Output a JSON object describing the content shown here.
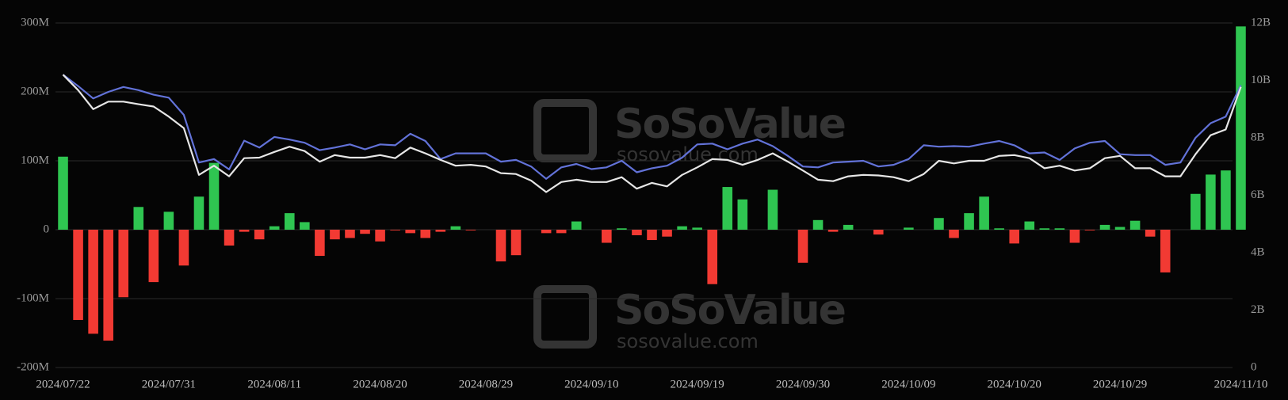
{
  "chart_data": {
    "type": "bar",
    "watermark": {
      "brand": "SoSoValue",
      "site": "sosovalue.com"
    },
    "categories": [
      "2024/07/22",
      null,
      null,
      null,
      null,
      null,
      null,
      "2024/07/31",
      null,
      null,
      null,
      null,
      null,
      null,
      "2024/08/11",
      null,
      null,
      null,
      null,
      null,
      null,
      "2024/08/20",
      null,
      null,
      null,
      null,
      null,
      null,
      "2024/08/29",
      null,
      null,
      null,
      null,
      null,
      null,
      "2024/09/10",
      null,
      null,
      null,
      null,
      null,
      null,
      "2024/09/19",
      null,
      null,
      null,
      null,
      null,
      null,
      "2024/09/30",
      null,
      null,
      null,
      null,
      null,
      null,
      "2024/10/09",
      null,
      null,
      null,
      null,
      null,
      null,
      "2024/10/20",
      null,
      null,
      null,
      null,
      null,
      null,
      "2024/10/29",
      null,
      null,
      null,
      null,
      null,
      null,
      null,
      "2024/11/10"
    ],
    "series": [
      {
        "type": "bar",
        "positive_color": "#2fc551",
        "negative_color": "#f23a33",
        "values": [
          106,
          -131,
          -151,
          -161,
          -98,
          33,
          -76,
          26,
          -52,
          48,
          97,
          -23,
          -3,
          -14,
          5,
          24,
          11,
          -38,
          -14,
          -12,
          -6,
          -17,
          -1,
          -5,
          -12,
          -3,
          5,
          -1,
          0,
          -46,
          -37,
          0,
          -5,
          -5,
          12,
          0,
          -19,
          2,
          -8,
          -15,
          -10,
          5,
          3,
          -79,
          62,
          44,
          0,
          58,
          0,
          -48,
          14,
          -3,
          7,
          0,
          -7,
          0,
          3,
          0,
          17,
          -12,
          24,
          48,
          2,
          -20,
          12,
          2,
          2,
          -19,
          -1,
          7,
          4,
          13,
          -10,
          -62,
          0,
          52,
          80,
          86,
          295
        ]
      },
      {
        "type": "line",
        "axis": "y2",
        "color": "#6272d8",
        "values": [
          10.2,
          9.8,
          9.37,
          9.6,
          9.77,
          9.66,
          9.5,
          9.4,
          8.8,
          7.14,
          7.26,
          6.9,
          7.9,
          7.66,
          8.03,
          7.94,
          7.83,
          7.57,
          7.66,
          7.77,
          7.6,
          7.77,
          7.74,
          8.14,
          7.89,
          7.26,
          7.46,
          7.46,
          7.46,
          7.17,
          7.23,
          7.0,
          6.57,
          6.97,
          7.09,
          6.91,
          6.97,
          7.2,
          6.8,
          6.94,
          7.03,
          7.31,
          7.77,
          7.8,
          7.6,
          7.8,
          7.94,
          7.71,
          7.37,
          7.0,
          6.97,
          7.14,
          7.17,
          7.2,
          7.0,
          7.06,
          7.26,
          7.74,
          7.69,
          7.71,
          7.69,
          7.8,
          7.89,
          7.74,
          7.46,
          7.49,
          7.23,
          7.63,
          7.83,
          7.89,
          7.43,
          7.4,
          7.4,
          7.06,
          7.14,
          8.0,
          8.51,
          8.74,
          9.83
        ]
      },
      {
        "type": "line",
        "axis": "y2",
        "color": "#e6e6e6",
        "values": [
          10.2,
          9.66,
          9.0,
          9.26,
          9.26,
          9.17,
          9.09,
          8.74,
          8.34,
          6.71,
          7.03,
          6.66,
          7.29,
          7.31,
          7.51,
          7.69,
          7.54,
          7.17,
          7.4,
          7.31,
          7.31,
          7.4,
          7.29,
          7.66,
          7.46,
          7.23,
          7.03,
          7.06,
          7.0,
          6.77,
          6.74,
          6.51,
          6.11,
          6.46,
          6.54,
          6.46,
          6.46,
          6.63,
          6.23,
          6.43,
          6.31,
          6.71,
          6.97,
          7.26,
          7.23,
          7.06,
          7.23,
          7.46,
          7.17,
          6.86,
          6.54,
          6.49,
          6.66,
          6.71,
          6.69,
          6.63,
          6.49,
          6.74,
          7.2,
          7.11,
          7.2,
          7.2,
          7.37,
          7.4,
          7.29,
          6.94,
          7.03,
          6.86,
          6.94,
          7.29,
          7.37,
          6.94,
          6.94,
          6.66,
          6.66,
          7.43,
          8.09,
          8.29,
          9.77
        ]
      }
    ],
    "ylim": [
      -200,
      300
    ],
    "yticks": [
      {
        "value": -200,
        "label": "-200M"
      },
      {
        "value": -100,
        "label": "-100M"
      },
      0,
      {
        "value": 100,
        "label": "100M"
      },
      {
        "value": 200,
        "label": "200M"
      },
      {
        "value": 300,
        "label": "300M"
      }
    ],
    "y2lim": [
      0,
      12
    ],
    "y2ticks": [
      0,
      {
        "value": 2,
        "label": "2B"
      },
      {
        "value": 4,
        "label": "4B"
      },
      {
        "value": 6,
        "label": "6B"
      },
      {
        "value": 8,
        "label": "8B"
      },
      {
        "value": 10,
        "label": "10B"
      },
      {
        "value": 12,
        "label": "12B"
      }
    ],
    "grid": true
  }
}
